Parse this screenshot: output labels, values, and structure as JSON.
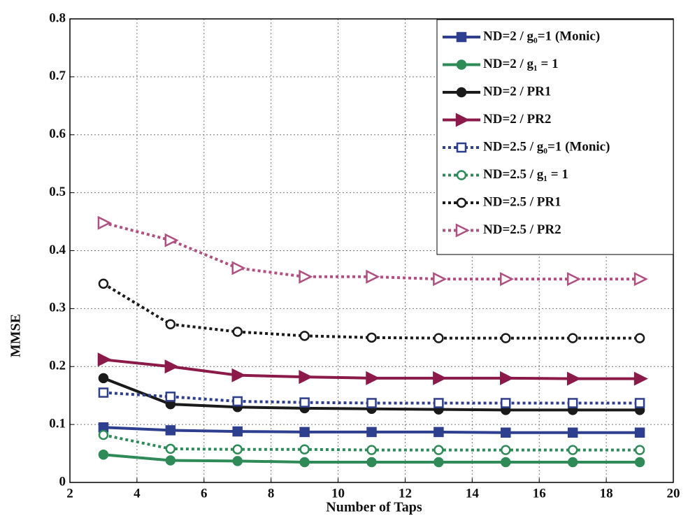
{
  "chart_data": {
    "type": "line",
    "x_label": "Number of Taps",
    "y_label": "MMSE",
    "x": [
      3,
      5,
      7,
      9,
      11,
      13,
      15,
      17,
      19
    ],
    "xlim": [
      2,
      20
    ],
    "xticks": [
      2,
      4,
      6,
      8,
      10,
      12,
      14,
      16,
      18,
      20
    ],
    "ylim": [
      0,
      0.8
    ],
    "yticks": [
      0,
      0.1,
      0.2,
      0.3,
      0.4,
      0.5,
      0.6,
      0.7,
      0.8
    ],
    "grid": true,
    "legend": "upper right",
    "series": [
      {
        "name": "ND=2 / g₀=1 (Monic)",
        "color": "#2e3f8f",
        "line_style": "solid",
        "marker": "square",
        "values": [
          0.095,
          0.09,
          0.088,
          0.087,
          0.087,
          0.087,
          0.086,
          0.086,
          0.086
        ]
      },
      {
        "name": "ND=2 / g₁ = 1",
        "color": "#2e8b57",
        "line_style": "solid",
        "marker": "circle",
        "values": [
          0.048,
          0.038,
          0.037,
          0.035,
          0.035,
          0.035,
          0.035,
          0.035,
          0.035
        ]
      },
      {
        "name": "ND=2 / PR1",
        "color": "#1a1a1a",
        "line_style": "solid",
        "marker": "circle",
        "values": [
          0.18,
          0.135,
          0.13,
          0.128,
          0.127,
          0.126,
          0.125,
          0.125,
          0.125
        ]
      },
      {
        "name": "ND=2 / PR2",
        "color": "#8b1a4a",
        "line_style": "solid",
        "marker": "triangle",
        "values": [
          0.212,
          0.2,
          0.185,
          0.182,
          0.18,
          0.18,
          0.18,
          0.179,
          0.179
        ]
      },
      {
        "name": "ND=2.5 / g₀=1 (Monic)",
        "color": "#2e3f8f",
        "line_style": "dotted",
        "marker": "square",
        "values": [
          0.155,
          0.148,
          0.14,
          0.138,
          0.137,
          0.137,
          0.137,
          0.137,
          0.137
        ]
      },
      {
        "name": "ND=2.5 / g₁ = 1",
        "color": "#2e8b57",
        "line_style": "dotted",
        "marker": "circle",
        "values": [
          0.082,
          0.058,
          0.057,
          0.057,
          0.056,
          0.056,
          0.056,
          0.056,
          0.056
        ]
      },
      {
        "name": "ND=2.5 / PR1",
        "color": "#1a1a1a",
        "line_style": "dotted",
        "marker": "circle",
        "values": [
          0.343,
          0.273,
          0.26,
          0.253,
          0.25,
          0.249,
          0.249,
          0.249,
          0.249
        ]
      },
      {
        "name": "ND=2.5 / PR2",
        "color": "#b05080",
        "line_style": "dotted",
        "marker": "triangle",
        "values": [
          0.448,
          0.418,
          0.37,
          0.355,
          0.355,
          0.351,
          0.351,
          0.351,
          0.351
        ]
      }
    ]
  }
}
